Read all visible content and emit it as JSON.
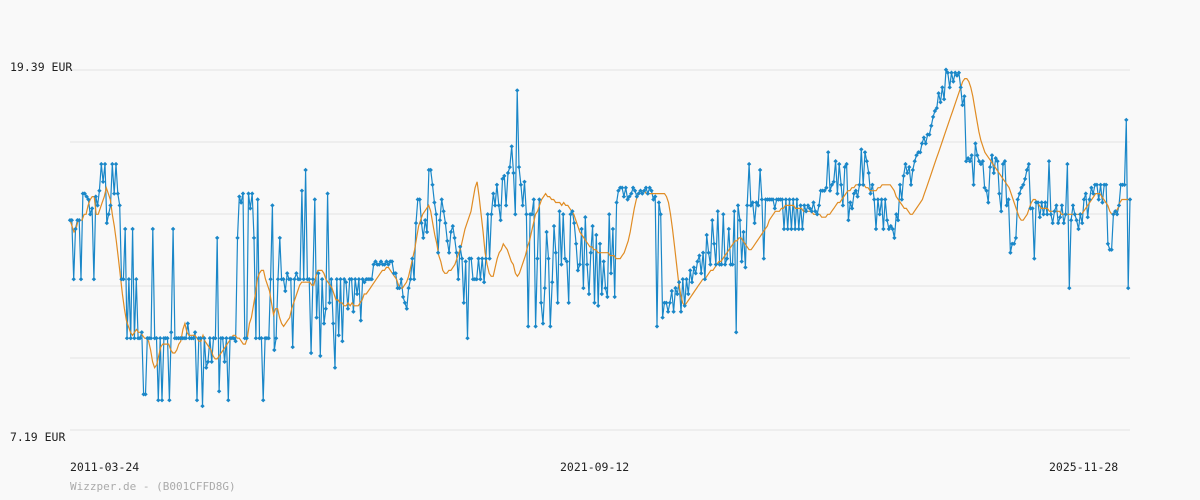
{
  "chart_data": {
    "type": "line",
    "title": "",
    "xlabel": "",
    "ylabel": "",
    "x_ticks": [
      "2011-03-24",
      "2021-09-12",
      "2025-11-28"
    ],
    "y_ticks": [
      "19.39 EUR",
      "7.19 EUR"
    ],
    "ylim": [
      7.19,
      19.39
    ],
    "grid": true,
    "legend": "none",
    "watermark": "Wizzper.de - (B001CFFD8G)",
    "colors": {
      "price": "#1a87c8",
      "moving_average": "#e08c24",
      "grid": "#e2e2e2",
      "background": "#f9f9f9"
    },
    "series": [
      {
        "values": [
          14.3,
          14.3,
          12.3,
          14.0,
          14.3,
          14.3,
          12.3,
          15.2,
          15.2,
          15.1,
          15.0,
          14.5,
          14.7,
          12.3,
          15.1,
          14.8,
          15.3,
          16.2,
          15.6,
          16.2,
          14.2,
          14.5,
          14.8,
          16.2,
          15.2,
          16.2,
          15.2,
          14.8,
          12.3,
          12.3,
          14.0,
          10.3,
          12.3,
          10.3,
          14.0,
          10.3,
          12.3,
          10.3,
          10.3,
          10.5,
          8.4,
          8.4,
          10.3,
          10.3,
          10.3,
          14.0,
          10.3,
          10.3,
          8.2,
          10.3,
          8.2,
          10.3,
          10.3,
          10.3,
          8.2,
          10.5,
          14.0,
          10.3,
          10.3,
          10.3,
          10.3,
          10.3,
          10.3,
          10.3,
          10.8,
          10.3,
          10.3,
          10.3,
          10.5,
          8.2,
          10.3,
          10.3,
          8.0,
          10.3,
          9.3,
          9.5,
          10.3,
          9.5,
          10.3,
          10.3,
          13.7,
          8.5,
          10.3,
          10.3,
          9.5,
          10.3,
          8.2,
          10.3,
          10.3,
          10.3,
          10.2,
          13.7,
          15.1,
          14.9,
          15.2,
          10.3,
          10.3,
          15.2,
          14.7,
          15.2,
          13.7,
          10.3,
          15.0,
          10.3,
          10.3,
          8.2,
          10.3,
          10.3,
          10.3,
          12.3,
          14.8,
          9.9,
          10.3,
          12.3,
          13.7,
          12.3,
          12.3,
          11.9,
          12.5,
          12.3,
          12.3,
          10.0,
          12.3,
          12.5,
          12.3,
          12.3,
          15.3,
          12.3,
          16.0,
          12.3,
          12.3,
          9.8,
          12.3,
          15.0,
          11.0,
          12.5,
          9.7,
          12.3,
          10.8,
          11.3,
          15.2,
          11.5,
          12.3,
          10.8,
          9.3,
          12.3,
          10.4,
          12.3,
          10.2,
          12.3,
          12.2,
          11.3,
          12.3,
          12.3,
          11.2,
          12.3,
          11.8,
          12.3,
          10.9,
          12.3,
          12.2,
          12.3,
          12.3,
          12.3,
          12.3,
          12.8,
          12.9,
          12.8,
          12.8,
          12.9,
          12.8,
          12.8,
          12.9,
          12.8,
          12.9,
          12.9,
          12.5,
          12.5,
          12.0,
          12.0,
          12.3,
          11.7,
          11.5,
          11.3,
          12.0,
          12.3,
          13.0,
          12.3,
          14.2,
          15.0,
          15.0,
          14.2,
          13.7,
          14.3,
          13.9,
          16.0,
          16.0,
          15.5,
          14.9,
          14.5,
          13.2,
          14.3,
          15.0,
          14.6,
          14.2,
          13.6,
          13.2,
          13.9,
          14.1,
          13.7,
          13.2,
          12.3,
          13.4,
          13.0,
          11.5,
          12.9,
          10.3,
          13.0,
          13.0,
          12.3,
          12.3,
          12.3,
          13.0,
          12.3,
          13.0,
          12.2,
          13.0,
          14.5,
          13.0,
          14.5,
          15.2,
          14.8,
          15.5,
          14.8,
          14.3,
          15.7,
          15.8,
          14.8,
          15.9,
          16.1,
          16.8,
          15.9,
          14.5,
          18.7,
          16.1,
          15.5,
          14.8,
          15.6,
          14.5,
          10.7,
          14.5,
          14.5,
          15.0,
          10.7,
          13.0,
          15.0,
          11.5,
          10.8,
          12.0,
          13.9,
          13.0,
          10.7,
          12.2,
          14.1,
          13.2,
          11.5,
          14.6,
          12.8,
          14.5,
          13.0,
          12.9,
          11.5,
          14.5,
          14.6,
          14.2,
          13.5,
          12.6,
          12.8,
          14.0,
          12.0,
          14.4,
          12.8,
          11.8,
          13.2,
          14.1,
          11.5,
          13.8,
          11.4,
          13.5,
          11.8,
          12.9,
          12.0,
          11.7,
          14.5,
          12.5,
          14.0,
          11.7,
          14.9,
          15.3,
          15.4,
          15.4,
          15.1,
          15.4,
          15.0,
          15.1,
          15.2,
          15.4,
          15.3,
          15.1,
          15.2,
          15.3,
          15.2,
          15.3,
          15.4,
          15.2,
          15.4,
          15.3,
          15.0,
          15.1,
          10.7,
          14.9,
          14.5,
          11.0,
          11.5,
          11.5,
          11.2,
          11.5,
          11.9,
          11.2,
          12.0,
          11.8,
          12.2,
          11.2,
          12.3,
          11.4,
          12.3,
          11.8,
          12.6,
          12.2,
          12.7,
          12.5,
          12.9,
          13.1,
          12.5,
          13.2,
          12.3,
          13.8,
          13.2,
          12.8,
          14.3,
          13.5,
          12.8,
          14.6,
          12.8,
          12.8,
          14.5,
          12.8,
          13.0,
          14.0,
          12.8,
          12.8,
          14.6,
          10.5,
          14.8,
          14.3,
          12.9,
          13.9,
          12.7,
          14.8,
          16.2,
          14.8,
          14.9,
          14.2,
          14.9,
          14.8,
          16.0,
          15.0,
          13.0,
          15.0,
          15.0,
          15.0,
          15.0,
          15.0,
          14.7,
          15.0,
          15.0,
          15.0,
          15.0,
          14.0,
          15.0,
          14.0,
          15.0,
          14.0,
          15.0,
          14.0,
          15.0,
          14.0,
          14.8,
          14.0,
          14.8,
          14.6,
          14.8,
          14.7,
          14.6,
          14.9,
          14.6,
          14.5,
          14.8,
          15.3,
          15.3,
          15.3,
          15.4,
          16.6,
          15.3,
          15.5,
          15.6,
          16.3,
          15.2,
          16.2,
          15.5,
          14.8,
          16.1,
          16.2,
          14.3,
          14.9,
          14.7,
          15.2,
          15.3,
          15.1,
          15.5,
          16.7,
          15.5,
          16.6,
          16.3,
          15.9,
          15.2,
          15.5,
          15.0,
          14.0,
          15.0,
          14.5,
          15.0,
          14.0,
          15.0,
          14.3,
          14.0,
          14.1,
          14.0,
          13.7,
          14.5,
          14.3,
          15.5,
          15.0,
          15.8,
          16.2,
          15.9,
          16.1,
          15.5,
          16.0,
          16.3,
          16.5,
          16.6,
          16.6,
          16.9,
          17.1,
          16.9,
          17.2,
          17.2,
          17.5,
          17.8,
          18.0,
          18.1,
          18.6,
          18.3,
          18.8,
          18.4,
          19.4,
          19.3,
          18.8,
          19.3,
          19.0,
          19.3,
          19.2,
          19.3,
          18.8,
          18.2,
          18.5,
          16.3,
          16.4,
          16.3,
          16.5,
          15.5,
          16.9,
          16.5,
          16.3,
          16.2,
          16.3,
          15.4,
          15.3,
          14.9,
          16.1,
          16.5,
          15.9,
          16.4,
          16.3,
          15.2,
          14.6,
          16.2,
          16.3,
          14.8,
          15.0,
          13.2,
          13.5,
          13.5,
          13.7,
          15.0,
          15.2,
          15.4,
          15.5,
          15.7,
          16.0,
          16.2,
          14.7,
          14.7,
          13.0,
          14.9,
          14.9,
          14.4,
          14.9,
          14.5,
          14.9,
          14.5,
          16.3,
          14.5,
          14.2,
          14.6,
          14.8,
          14.2,
          14.4,
          14.8,
          14.2,
          14.5,
          16.2,
          12.0,
          14.3,
          14.8,
          14.5,
          14.3,
          14.0,
          14.5,
          14.2,
          15.0,
          15.2,
          14.4,
          15.0,
          15.4,
          15.2,
          15.5,
          15.5,
          15.0,
          15.5,
          14.9,
          15.5,
          15.5,
          13.5,
          13.3,
          13.3,
          14.5,
          14.6,
          14.5,
          14.8,
          15.5,
          15.5,
          15.5,
          17.7,
          12.0,
          15.0
        ]
      },
      {
        "values": [
          14.3,
          14.1,
          13.9,
          14.0,
          14.3,
          14.3,
          14.3,
          14.5,
          14.5,
          14.8,
          15.0,
          15.1,
          15.1,
          14.5,
          14.5,
          14.7,
          14.9,
          15.1,
          15.4,
          15.2,
          15.0,
          14.5,
          14.1,
          13.6,
          13.0,
          12.4,
          11.8,
          11.3,
          10.9,
          10.7,
          10.5,
          10.4,
          10.5,
          10.6,
          10.5,
          10.5,
          10.4,
          10.3,
          10.3,
          10.2,
          9.9,
          9.5,
          9.3,
          9.4,
          9.7,
          10.0,
          10.1,
          10.1,
          10.1,
          10.1,
          9.9,
          9.8,
          9.8,
          9.9,
          10.1,
          10.2,
          10.6,
          10.8,
          10.5,
          10.4,
          10.4,
          10.4,
          10.4,
          10.3,
          10.2,
          10.2,
          10.4,
          10.2,
          10.1,
          10.0,
          9.9,
          9.7,
          9.6,
          9.6,
          9.7,
          9.8,
          9.9,
          10.0,
          10.1,
          10.2,
          10.3,
          10.4,
          10.4,
          10.3,
          10.3,
          10.2,
          10.1,
          10.1,
          10.3,
          10.8,
          11.0,
          11.4,
          11.8,
          12.3,
          12.5,
          12.6,
          12.6,
          12.3,
          12.1,
          11.9,
          11.5,
          11.1,
          11.3,
          11.3,
          11.0,
          10.8,
          10.7,
          10.8,
          10.9,
          11.0,
          11.3,
          11.5,
          11.7,
          11.9,
          12.1,
          12.2,
          12.2,
          12.2,
          12.2,
          12.2,
          12.1,
          12.1,
          12.4,
          12.6,
          12.6,
          12.6,
          12.5,
          12.3,
          12.2,
          12.1,
          12.0,
          11.8,
          11.6,
          11.6,
          11.5,
          11.5,
          11.4,
          11.4,
          11.5,
          11.4,
          11.5,
          11.4,
          11.4,
          11.4,
          11.5,
          11.6,
          11.8,
          11.8,
          11.9,
          12.0,
          12.1,
          12.2,
          12.3,
          12.4,
          12.5,
          12.6,
          12.6,
          12.7,
          12.7,
          12.6,
          12.5,
          12.4,
          12.3,
          12.1,
          12.0,
          12.0,
          12.1,
          12.2,
          12.4,
          12.7,
          13.0,
          13.3,
          13.7,
          14.1,
          14.3,
          14.5,
          14.6,
          14.7,
          14.8,
          14.6,
          14.2,
          13.8,
          13.5,
          13.1,
          12.9,
          12.6,
          12.5,
          12.5,
          12.6,
          12.6,
          12.7,
          12.8,
          13.0,
          13.2,
          13.4,
          13.7,
          14.0,
          14.2,
          14.4,
          14.6,
          15.0,
          15.4,
          15.6,
          15.1,
          14.5,
          13.9,
          13.2,
          12.8,
          12.5,
          12.4,
          12.4,
          12.7,
          13.0,
          13.2,
          13.3,
          13.5,
          13.4,
          13.3,
          13.1,
          12.9,
          12.8,
          12.5,
          12.4,
          12.5,
          12.7,
          12.9,
          13.1,
          13.4,
          13.6,
          13.9,
          14.2,
          14.5,
          14.6,
          14.8,
          15.0,
          15.1,
          15.2,
          15.1,
          15.1,
          15.0,
          15.0,
          14.9,
          14.9,
          14.9,
          14.8,
          14.9,
          14.8,
          14.8,
          14.7,
          14.6,
          14.5,
          14.3,
          14.1,
          13.9,
          13.8,
          13.7,
          13.6,
          13.5,
          13.4,
          13.4,
          13.3,
          13.3,
          13.2,
          13.2,
          13.2,
          13.2,
          13.2,
          13.2,
          13.1,
          13.1,
          13.1,
          13.0,
          13.0,
          13.0,
          13.1,
          13.2,
          13.4,
          13.6,
          13.9,
          14.3,
          14.7,
          15.0,
          15.2,
          15.3,
          15.3,
          15.3,
          15.2,
          15.2,
          15.2,
          15.2,
          15.2,
          15.2,
          15.2,
          15.2,
          15.2,
          15.2,
          15.1,
          14.9,
          14.5,
          14.0,
          13.4,
          12.8,
          12.2,
          11.8,
          11.5,
          11.4,
          11.5,
          11.6,
          11.7,
          11.8,
          11.9,
          12.0,
          12.1,
          12.2,
          12.3,
          12.3,
          12.4,
          12.5,
          12.6,
          12.6,
          12.7,
          12.8,
          12.9,
          12.9,
          13.0,
          13.1,
          13.2,
          13.3,
          13.4,
          13.5,
          13.6,
          13.6,
          13.7,
          13.7,
          13.6,
          13.5,
          13.4,
          13.3,
          13.3,
          13.4,
          13.5,
          13.6,
          13.7,
          13.8,
          13.9,
          14.0,
          14.1,
          14.3,
          14.4,
          14.5,
          14.6,
          14.6,
          14.6,
          14.7,
          14.7,
          14.8,
          14.8,
          14.8,
          14.8,
          14.8,
          14.7,
          14.7,
          14.7,
          14.7,
          14.6,
          14.6,
          14.6,
          14.6,
          14.6,
          14.5,
          14.5,
          14.5,
          14.5,
          14.4,
          14.4,
          14.4,
          14.5,
          14.5,
          14.6,
          14.7,
          14.8,
          14.9,
          14.9,
          15.0,
          15.1,
          15.2,
          15.3,
          15.3,
          15.4,
          15.4,
          15.5,
          15.5,
          15.5,
          15.5,
          15.5,
          15.4,
          15.4,
          15.3,
          15.3,
          15.3,
          15.3,
          15.4,
          15.4,
          15.5,
          15.5,
          15.5,
          15.5,
          15.5,
          15.4,
          15.3,
          15.1,
          15.0,
          14.9,
          14.8,
          14.7,
          14.7,
          14.6,
          14.5,
          14.5,
          14.6,
          14.7,
          14.8,
          14.9,
          15.0,
          15.2,
          15.4,
          15.6,
          15.8,
          16.0,
          16.2,
          16.4,
          16.6,
          16.8,
          17.0,
          17.2,
          17.4,
          17.6,
          17.8,
          18.0,
          18.2,
          18.4,
          18.6,
          18.8,
          19.0,
          19.1,
          19.1,
          19.0,
          18.8,
          18.5,
          18.1,
          17.7,
          17.3,
          17.0,
          16.8,
          16.6,
          16.5,
          16.4,
          16.3,
          16.2,
          16.1,
          16.0,
          15.9,
          15.8,
          15.7,
          15.6,
          15.5,
          15.4,
          15.2,
          15.0,
          14.8,
          14.6,
          14.4,
          14.3,
          14.3,
          14.4,
          14.5,
          14.7,
          14.9,
          15.0,
          15.0,
          14.9,
          14.8,
          14.7,
          14.7,
          14.7,
          14.7,
          14.6,
          14.6,
          14.6,
          14.6,
          14.6,
          14.6,
          14.5,
          14.5,
          14.5,
          14.5,
          14.5,
          14.5,
          14.5,
          14.5,
          14.5,
          14.5,
          14.5,
          14.6,
          14.7,
          14.8,
          14.9,
          15.0,
          15.1,
          15.2,
          15.2,
          15.2,
          15.1,
          15.0,
          14.9,
          14.8,
          14.6,
          14.5,
          14.5,
          14.6,
          14.7,
          14.9,
          15.0,
          15.0,
          15.0,
          15.0,
          15.0
        ]
      }
    ]
  }
}
